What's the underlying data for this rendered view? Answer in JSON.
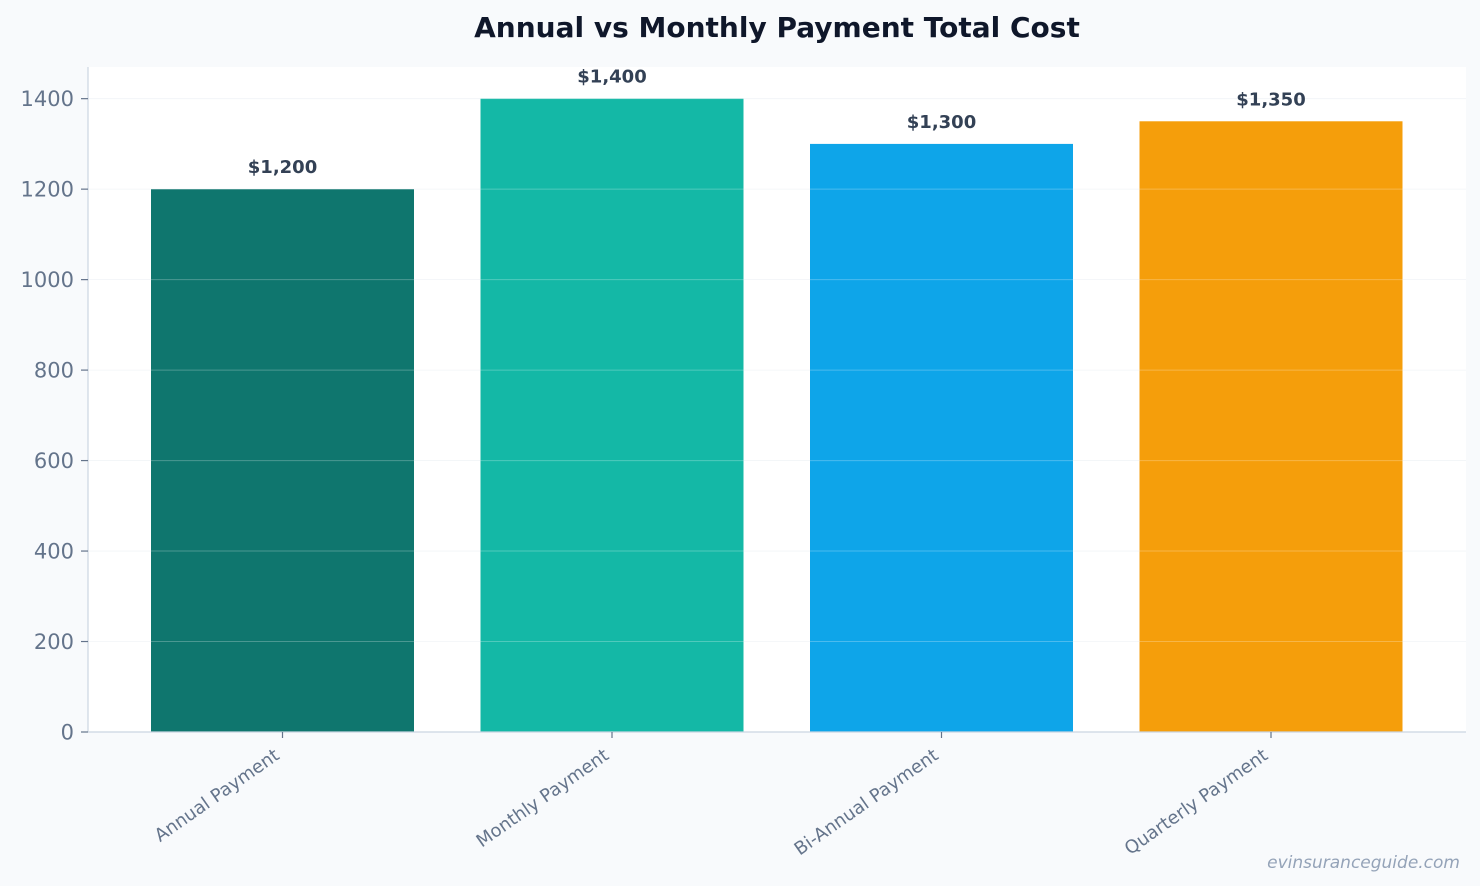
{
  "chart_data": {
    "type": "bar",
    "title": "Annual vs Monthly Payment Total Cost",
    "xlabel": "",
    "ylabel": "",
    "categories": [
      "Annual Payment",
      "Monthly Payment",
      "Bi-Annual Payment",
      "Quarterly Payment"
    ],
    "values": [
      1200,
      1400,
      1300,
      1350
    ],
    "data_labels": [
      "$1,200",
      "$1,400",
      "$1,300",
      "$1,350"
    ],
    "colors": [
      "#0f766e",
      "#14b8a6",
      "#0ea5e9",
      "#f59e0b"
    ],
    "ylim": [
      0,
      1470
    ],
    "yticks": [
      0,
      200,
      400,
      600,
      800,
      1000,
      1200,
      1400
    ],
    "grid": true,
    "legend": "none"
  },
  "watermark": "evinsuranceguide.com"
}
